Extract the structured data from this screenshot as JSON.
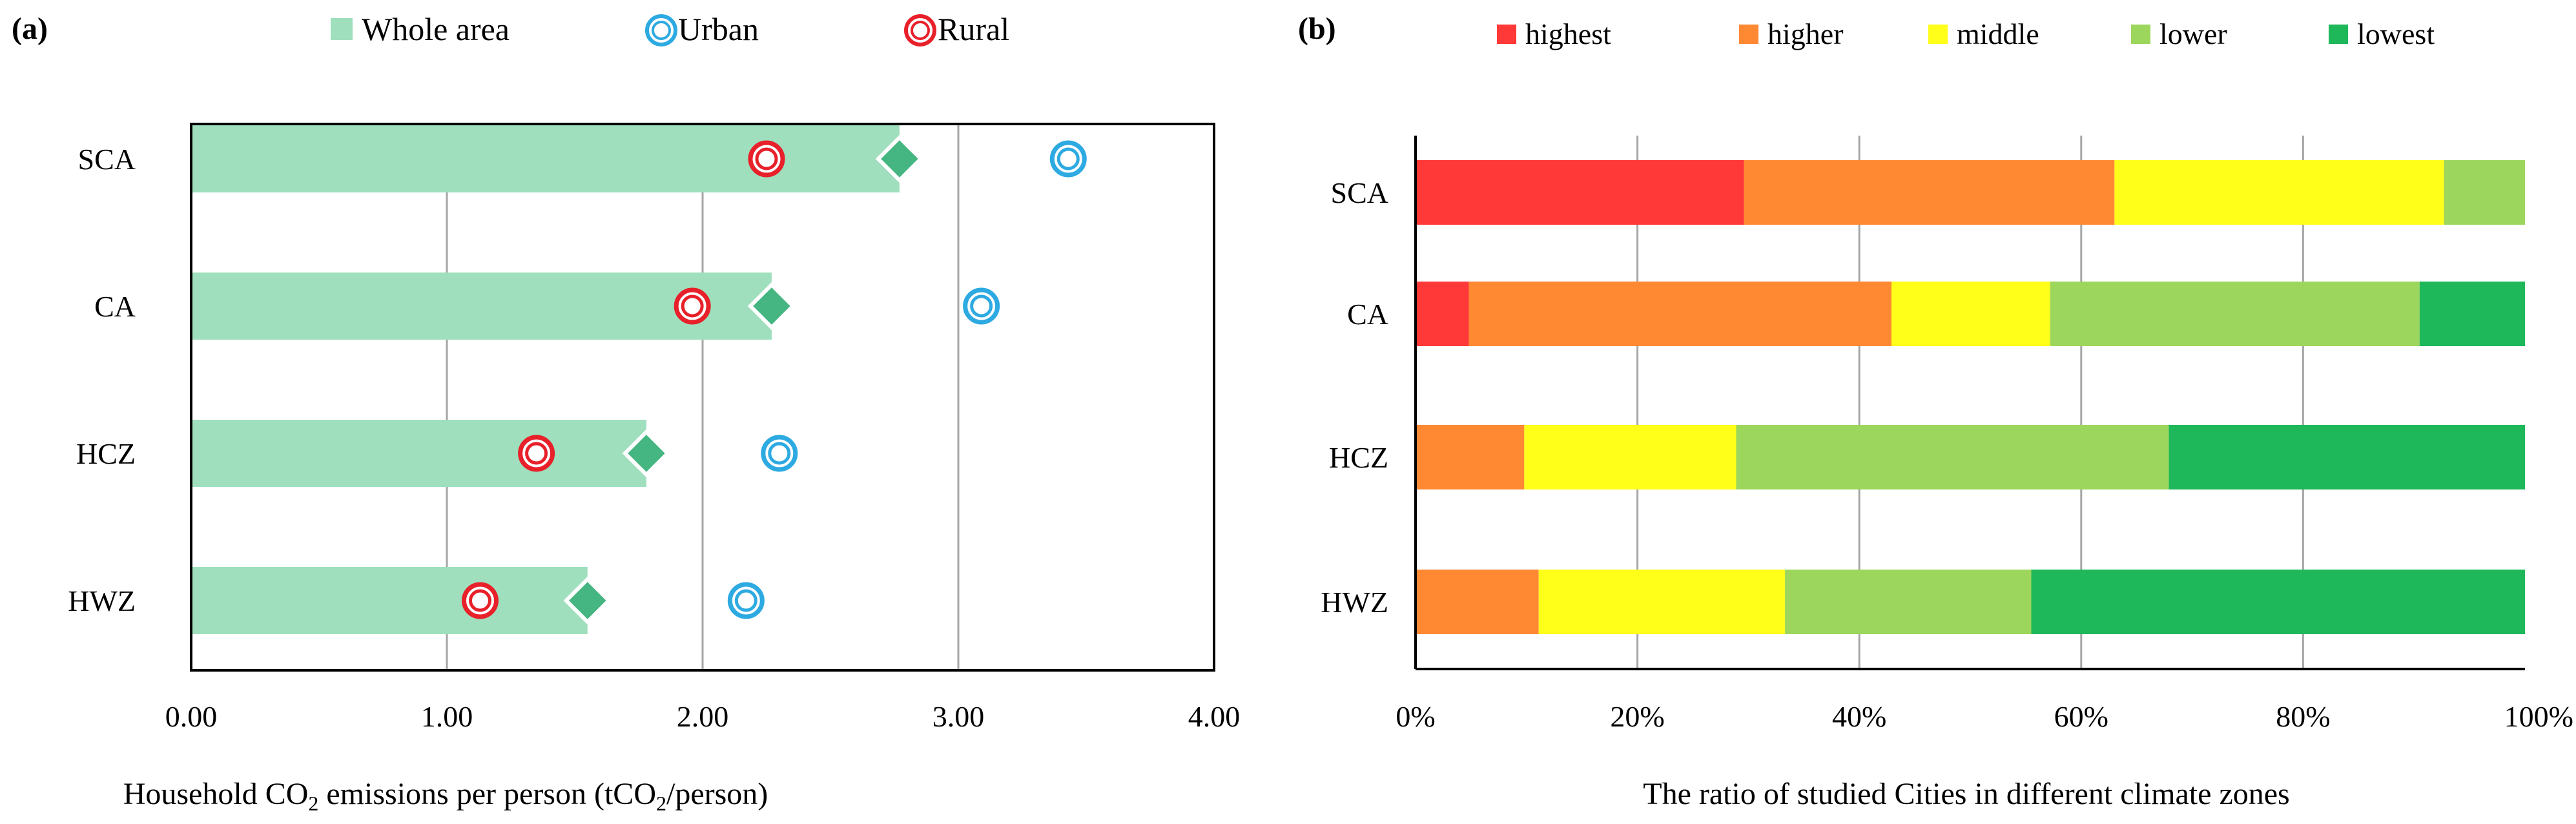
{
  "chart_data": [
    {
      "panel": "(a)",
      "type": "bar",
      "orientation": "horizontal",
      "categories": [
        "SCA",
        "CA",
        "HCZ",
        "HWZ"
      ],
      "series": [
        {
          "name": "Whole area",
          "marker": "bar+diamond",
          "values": [
            2.77,
            2.27,
            1.78,
            1.55
          ]
        },
        {
          "name": "Urban",
          "marker": "circle",
          "values": [
            3.43,
            3.09,
            2.3,
            2.17
          ]
        },
        {
          "name": "Rural",
          "marker": "circle",
          "values": [
            2.25,
            1.96,
            1.35,
            1.13
          ]
        }
      ],
      "xlim": [
        0,
        4
      ],
      "xticks": [
        "0.00",
        "1.00",
        "2.00",
        "3.00",
        "4.00"
      ],
      "xlabel_parts": [
        "Household CO",
        "2",
        " emissions per person (tCO",
        "2",
        "/person)"
      ],
      "grid": "vertical",
      "legend": "top"
    },
    {
      "panel": "(b)",
      "type": "bar",
      "orientation": "horizontal",
      "stacked": true,
      "categories": [
        "SCA",
        "CA",
        "HCZ",
        "HWZ"
      ],
      "series": [
        {
          "name": "highest",
          "values": [
            29.6,
            4.8,
            0,
            0
          ]
        },
        {
          "name": "higher",
          "values": [
            33.4,
            38.1,
            9.8,
            11.1
          ]
        },
        {
          "name": "middle",
          "values": [
            29.7,
            14.3,
            19.1,
            22.2
          ]
        },
        {
          "name": "lower",
          "values": [
            7.3,
            33.3,
            39.0,
            22.2
          ]
        },
        {
          "name": "lowest",
          "values": [
            0,
            9.5,
            32.1,
            44.5
          ]
        }
      ],
      "xlim": [
        0,
        100
      ],
      "xticks": [
        "0%",
        "20%",
        "40%",
        "60%",
        "80%",
        "100%"
      ],
      "xlabel": "The ratio of studied Cities in different climate zones",
      "grid": "vertical",
      "legend": "top"
    }
  ],
  "colors": {
    "whole_bar": "#9fdfbe",
    "whole_diamond": "#45b582",
    "urban": "#2daae1",
    "rural": "#e8202a",
    "highest": "#ff3838",
    "higher": "#ff8833",
    "middle": "#ffff1a",
    "lower": "#9dd65c",
    "lowest": "#1eb85a",
    "grid": "#a6a6a6",
    "axis": "#000000"
  }
}
